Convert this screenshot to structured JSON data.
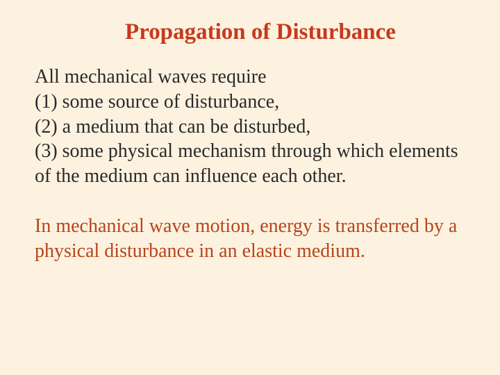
{
  "slide": {
    "background_color": "#fdf2e0",
    "title": {
      "text": "Propagation of Disturbance",
      "color": "#c63a1c",
      "fontsize": 33
    },
    "body": {
      "fontsize": 28,
      "text_color": "#2a2a2a",
      "accent_color": "#b8441a",
      "intro": "All mechanical waves require",
      "item1": "(1) some source of disturbance,",
      "item2": "(2) a medium that  can  be  disturbed,",
      "item3": "(3)  some  physical  mechanism  through which elements of  the medium can  influence each other.",
      "conclusion": "In mechanical wave motion, energy is transferred by a physical disturbance in an elastic medium."
    }
  }
}
